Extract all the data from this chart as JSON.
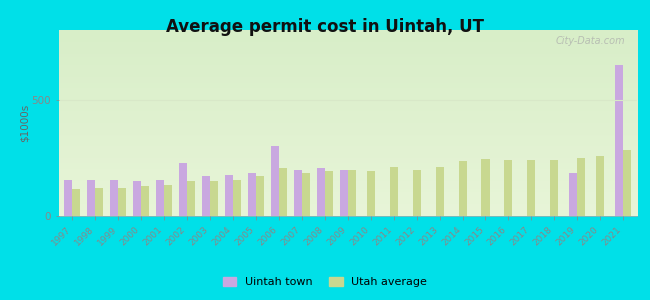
{
  "title": "Average permit cost in Uintah, UT",
  "ylabel": "$1000s",
  "years": [
    1997,
    1998,
    1999,
    2000,
    2001,
    2002,
    2003,
    2004,
    2005,
    2006,
    2007,
    2008,
    2009,
    2010,
    2011,
    2012,
    2013,
    2014,
    2015,
    2016,
    2017,
    2018,
    2019,
    2020,
    2021
  ],
  "uintah_values": [
    155,
    155,
    155,
    150,
    155,
    230,
    170,
    175,
    185,
    300,
    200,
    205,
    200,
    0,
    0,
    0,
    0,
    0,
    0,
    0,
    0,
    0,
    185,
    0,
    650
  ],
  "utah_values": [
    115,
    120,
    120,
    130,
    135,
    150,
    150,
    155,
    170,
    205,
    185,
    195,
    200,
    195,
    210,
    200,
    210,
    235,
    245,
    242,
    240,
    242,
    248,
    260,
    285
  ],
  "uintah_color": "#c9a8e0",
  "utah_color": "#c8d890",
  "outer_bg": "#00e0e8",
  "plot_bg_top": "#d8eec8",
  "plot_bg_bottom": "#e8f5d8",
  "ylim": [
    0,
    800
  ],
  "yticks": [
    0,
    500
  ],
  "grid_color": "#d8e8c8",
  "bar_width": 0.35,
  "legend_uintah": "Uintah town",
  "legend_utah": "Utah average",
  "watermark": "City-Data.com"
}
